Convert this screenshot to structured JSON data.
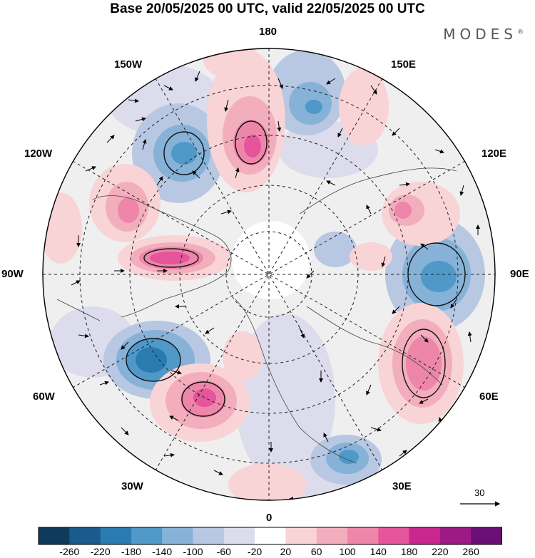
{
  "header": {
    "title": "Base 20/05/2025 00 UTC, valid 22/05/2025 00 UTC",
    "brand": "MODES"
  },
  "map": {
    "projection": "north polar stereographic",
    "meridian_labels": {
      "top": "180",
      "bottom": "0",
      "left": "90W",
      "right": "90E",
      "w150": "150W",
      "e150": "150E",
      "w120": "120W",
      "e120": "120E",
      "w60": "60W",
      "e60": "60E",
      "w30": "30W",
      "e30": "30E"
    },
    "vector_reference": "30"
  },
  "colorbar": {
    "labels": [
      "-260",
      "-220",
      "-180",
      "-140",
      "-100",
      "-60",
      "-20",
      "20",
      "60",
      "100",
      "140",
      "180",
      "220",
      "260"
    ],
    "colors": [
      "#0e3a5c",
      "#1a5a8c",
      "#2a7bb0",
      "#4f98c8",
      "#86b2d8",
      "#b8c7e2",
      "#dcdcec",
      "#ffffff",
      "#f9d4d6",
      "#f3aebd",
      "#ee86aa",
      "#e4559c",
      "#c9268e",
      "#9b1a83",
      "#6a0f76"
    ]
  }
}
